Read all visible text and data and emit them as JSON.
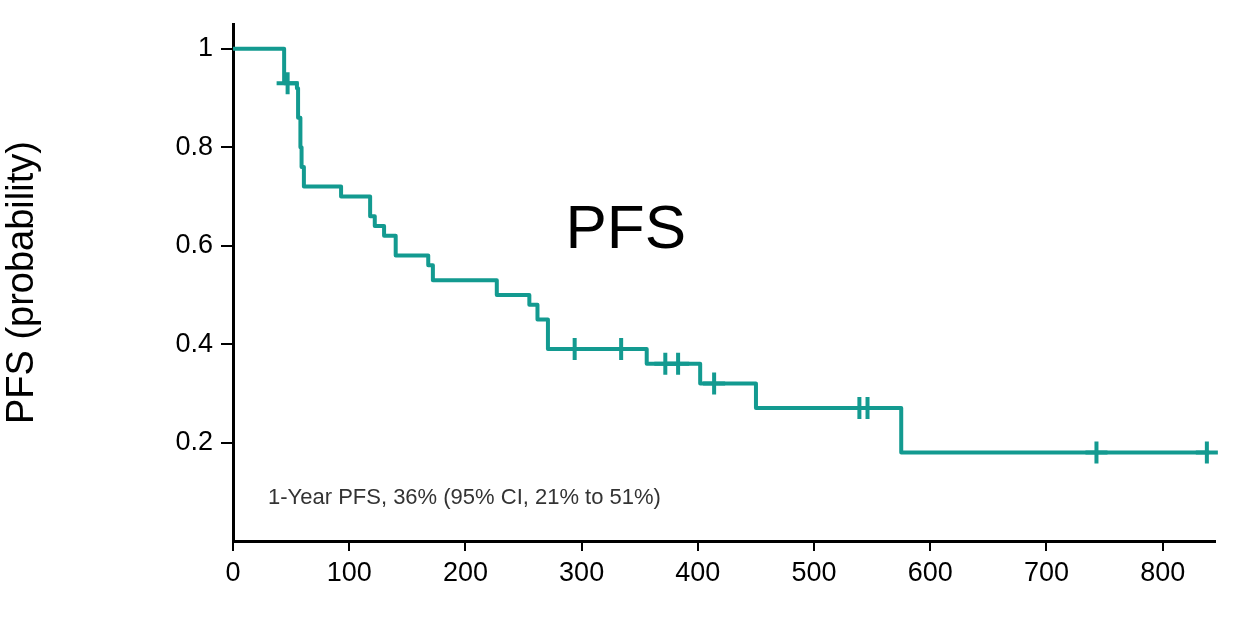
{
  "chart_data": {
    "type": "step",
    "title": "PFS",
    "ylabel": "PFS (probability)",
    "annotations": [
      "1-Year PFS, 36% (95% CI, 21% to 51%)"
    ],
    "xlim": [
      0,
      845
    ],
    "xticks": [
      0,
      100,
      200,
      300,
      400,
      500,
      600,
      700,
      800
    ],
    "ylim": [
      0,
      1.05
    ],
    "yticks": [
      0.2,
      0.4,
      0.6,
      0.8,
      1
    ],
    "series": [
      {
        "color": "#139a90",
        "marker": "none",
        "x": [
          0,
          44,
          55,
          56,
          58,
          59,
          61,
          93,
          118,
          122,
          130,
          140,
          168,
          172,
          227,
          255,
          262,
          271,
          356,
          402,
          450,
          575,
          840
        ],
        "values": [
          1,
          0.93,
          0.92,
          0.86,
          0.8,
          0.76,
          0.72,
          0.7,
          0.66,
          0.64,
          0.62,
          0.58,
          0.56,
          0.53,
          0.5,
          0.48,
          0.45,
          0.39,
          0.36,
          0.32,
          0.27,
          0.18,
          0.18
        ]
      },
      {
        "type": "scatter",
        "color": "#139a90",
        "marker": "cross",
        "x": [
          47,
          294,
          334,
          372,
          383,
          414,
          539,
          546,
          743,
          838
        ],
        "values": [
          0.93,
          0.39,
          0.39,
          0.36,
          0.36,
          0.32,
          0.27,
          0.27,
          0.18,
          0.18
        ]
      }
    ]
  }
}
